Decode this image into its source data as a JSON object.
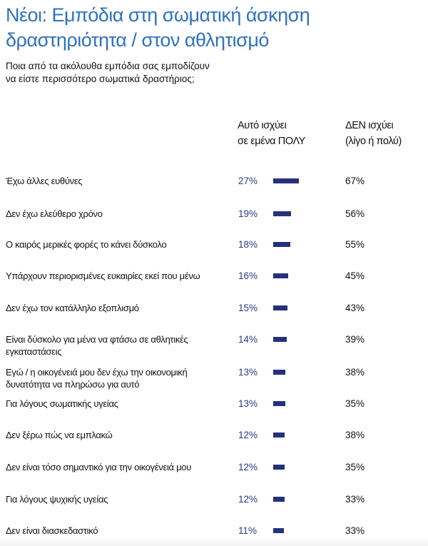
{
  "chart_data": {
    "type": "bar",
    "title": "Νέοι: Εμπόδια στη σωματική άσκηση δραστηριότητα / στον αθλητισμό",
    "title_lines": [
      "Νέοι: Εμπόδια στη σωματική άσκηση",
      "δραστηριότητα / στον αθλητισμό"
    ],
    "subtitle_lines": [
      "Ποια από τα ακόλουθα εμπόδια σας εμποδίζουν",
      "να είστε περισσότερο σωματικά δραστήριος;"
    ],
    "columns": {
      "applies_lines": [
        "Αυτό ισχύει",
        "σε εμένα ΠΟΛΥ"
      ],
      "not_applies_lines": [
        "ΔΕΝ ισχύει",
        "(λίγο ή πολύ)"
      ]
    },
    "bar_color": "#25317a",
    "title_color": "#2f72c0",
    "rows": [
      {
        "label": "Έχω άλλες ευθύνες",
        "applies": 27,
        "applies_label": "27%",
        "not_applies_label": "67%"
      },
      {
        "label": "Δεν έχω ελεύθερο χρόνο",
        "applies": 19,
        "applies_label": "19%",
        "not_applies_label": "56%"
      },
      {
        "label": "Ο καιρός μερικές φορές το κάνει δύσκολο",
        "applies": 18,
        "applies_label": "18%",
        "not_applies_label": "55%"
      },
      {
        "label": "Υπάρχουν περιορισμένες ευκαιρίες εκεί που μένω",
        "applies": 16,
        "applies_label": "16%",
        "not_applies_label": "45%"
      },
      {
        "label": "Δεν έχω τον κατάλληλο εξοπλισμό",
        "applies": 15,
        "applies_label": "15%",
        "not_applies_label": "43%"
      },
      {
        "label": "Είναι δύσκολο για μένα να φτάσω σε αθλητικές εγκαταστάσεις",
        "applies": 14,
        "applies_label": "14%",
        "not_applies_label": "39%"
      },
      {
        "label": "Εγώ / η οικογένειά μου δεν έχω την οικονομική δυνατότητα να πληρώσω για αυτό",
        "applies": 13,
        "applies_label": "13%",
        "not_applies_label": "38%"
      },
      {
        "label": "Για λόγους σωματικής υγείας",
        "applies": 13,
        "applies_label": "13%",
        "not_applies_label": "35%"
      },
      {
        "label": "Δεν ξέρω πώς να εμπλακώ",
        "applies": 12,
        "applies_label": "12%",
        "not_applies_label": "38%"
      },
      {
        "label": "Δεν είναι τόσο σημαντικό για την οικογένειά μου",
        "applies": 12,
        "applies_label": "12%",
        "not_applies_label": "35%"
      },
      {
        "label": "Για λόγους ψυχικής υγείας",
        "applies": 12,
        "applies_label": "12%",
        "not_applies_label": "33%"
      },
      {
        "label": "Δεν είναι διασκεδαστικό",
        "applies": 11,
        "applies_label": "11%",
        "not_applies_label": "33%"
      }
    ]
  }
}
